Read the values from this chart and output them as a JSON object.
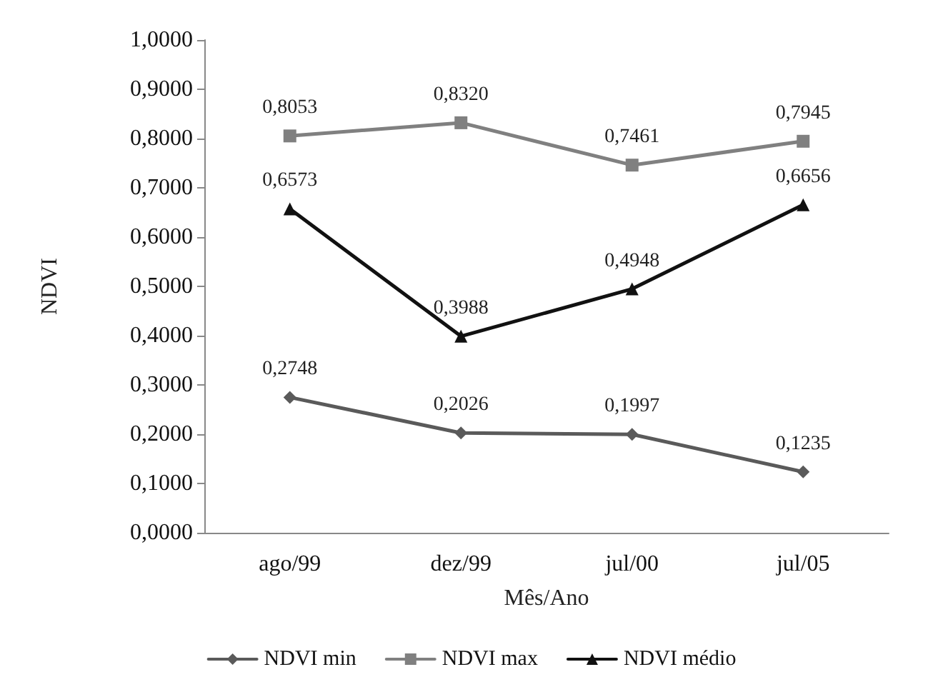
{
  "chart_data": {
    "type": "line",
    "xlabel": "Mês/Ano",
    "ylabel": "NDVI",
    "categories": [
      "ago/99",
      "dez/99",
      "jul/00",
      "jul/05"
    ],
    "series": [
      {
        "name": "NDVI min",
        "color": "#5a5a5a",
        "marker": "diamond",
        "values": [
          0.2748,
          0.2026,
          0.1997,
          0.1235
        ],
        "value_labels": [
          "0,2748",
          "0,2026",
          "0,1997",
          "0,1235"
        ]
      },
      {
        "name": "NDVI max",
        "color": "#808080",
        "marker": "square",
        "values": [
          0.8053,
          0.832,
          0.7461,
          0.7945
        ],
        "value_labels": [
          "0,8053",
          "0,8320",
          "0,7461",
          "0,7945"
        ]
      },
      {
        "name": "NDVI médio",
        "color": "#111111",
        "marker": "triangle",
        "values": [
          0.6573,
          0.3988,
          0.4948,
          0.6656
        ],
        "value_labels": [
          "0,6573",
          "0,3988",
          "0,4948",
          "0,6656"
        ]
      }
    ],
    "ylim": [
      0,
      1
    ],
    "yticks": [
      {
        "value": 0,
        "label": "0,0000"
      },
      {
        "value": 0.1,
        "label": "0,1000"
      },
      {
        "value": 0.2,
        "label": "0,2000"
      },
      {
        "value": 0.3,
        "label": "0,3000"
      },
      {
        "value": 0.4,
        "label": "0,4000"
      },
      {
        "value": 0.5,
        "label": "0,5000"
      },
      {
        "value": 0.6,
        "label": "0,6000"
      },
      {
        "value": 0.7,
        "label": "0,7000"
      },
      {
        "value": 0.8,
        "label": "0,8000"
      },
      {
        "value": 0.9,
        "label": "0,9000"
      },
      {
        "value": 1,
        "label": "1,0000"
      }
    ],
    "grid": false,
    "legend": "bottom",
    "line_style": "solid"
  }
}
